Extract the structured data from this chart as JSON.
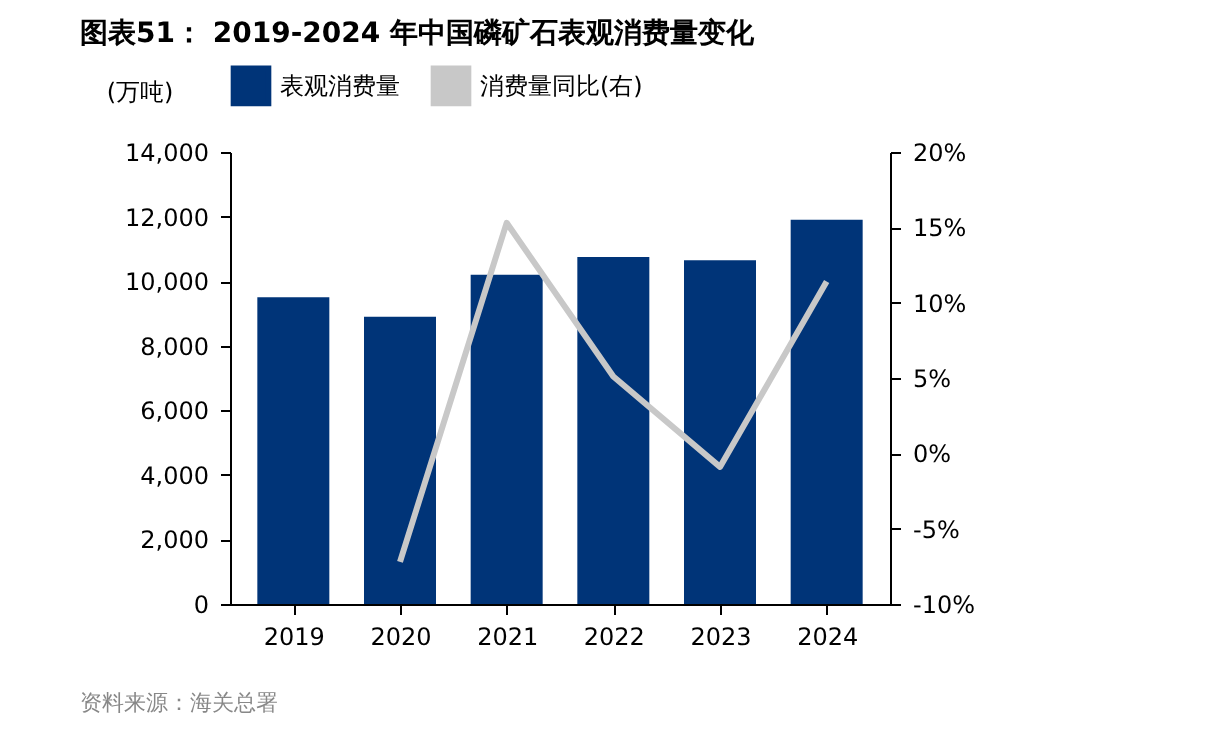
{
  "chart_data": {
    "type": "bar",
    "title": "图表51：  2019-2024 年中国磷矿石表观消费量变化",
    "ylabel": "(万吨)",
    "categories": [
      "2019",
      "2020",
      "2021",
      "2022",
      "2023",
      "2024"
    ],
    "series": [
      {
        "name": "表观消费量",
        "color": "#003478",
        "values": [
          9500,
          8900,
          10200,
          10750,
          10650,
          11900
        ]
      },
      {
        "name": "消费量同比(右)",
        "type": "line",
        "axis": "y2",
        "color": "#c8c8c8",
        "values": [
          null,
          -7.2,
          15.3,
          5.1,
          -0.9,
          11.4
        ]
      }
    ],
    "ylim": [
      0,
      14000
    ],
    "yticks": [
      0,
      {
        "value": 2000,
        "label": "2,000"
      },
      {
        "value": 4000,
        "label": "4,000"
      },
      {
        "value": 6000,
        "label": "6,000"
      },
      {
        "value": 8000,
        "label": "8,000"
      },
      {
        "value": 10000,
        "label": "10,000"
      },
      {
        "value": 12000,
        "label": "12,000"
      },
      {
        "value": 14000,
        "label": "14,000"
      }
    ],
    "y2lim": [
      -10,
      20
    ],
    "y2ticks": [
      {
        "value": -10,
        "label": "-10%"
      },
      {
        "value": -5,
        "label": "-5%"
      },
      {
        "value": 0,
        "label": "0%"
      },
      {
        "value": 5,
        "label": "5%"
      },
      {
        "value": 10,
        "label": "10%"
      },
      {
        "value": 15,
        "label": "15%"
      },
      {
        "value": 20,
        "label": "20%"
      }
    ],
    "grid": false,
    "legend": "top",
    "marker": "none",
    "annotations": [
      "资料来源：海关总署"
    ]
  }
}
